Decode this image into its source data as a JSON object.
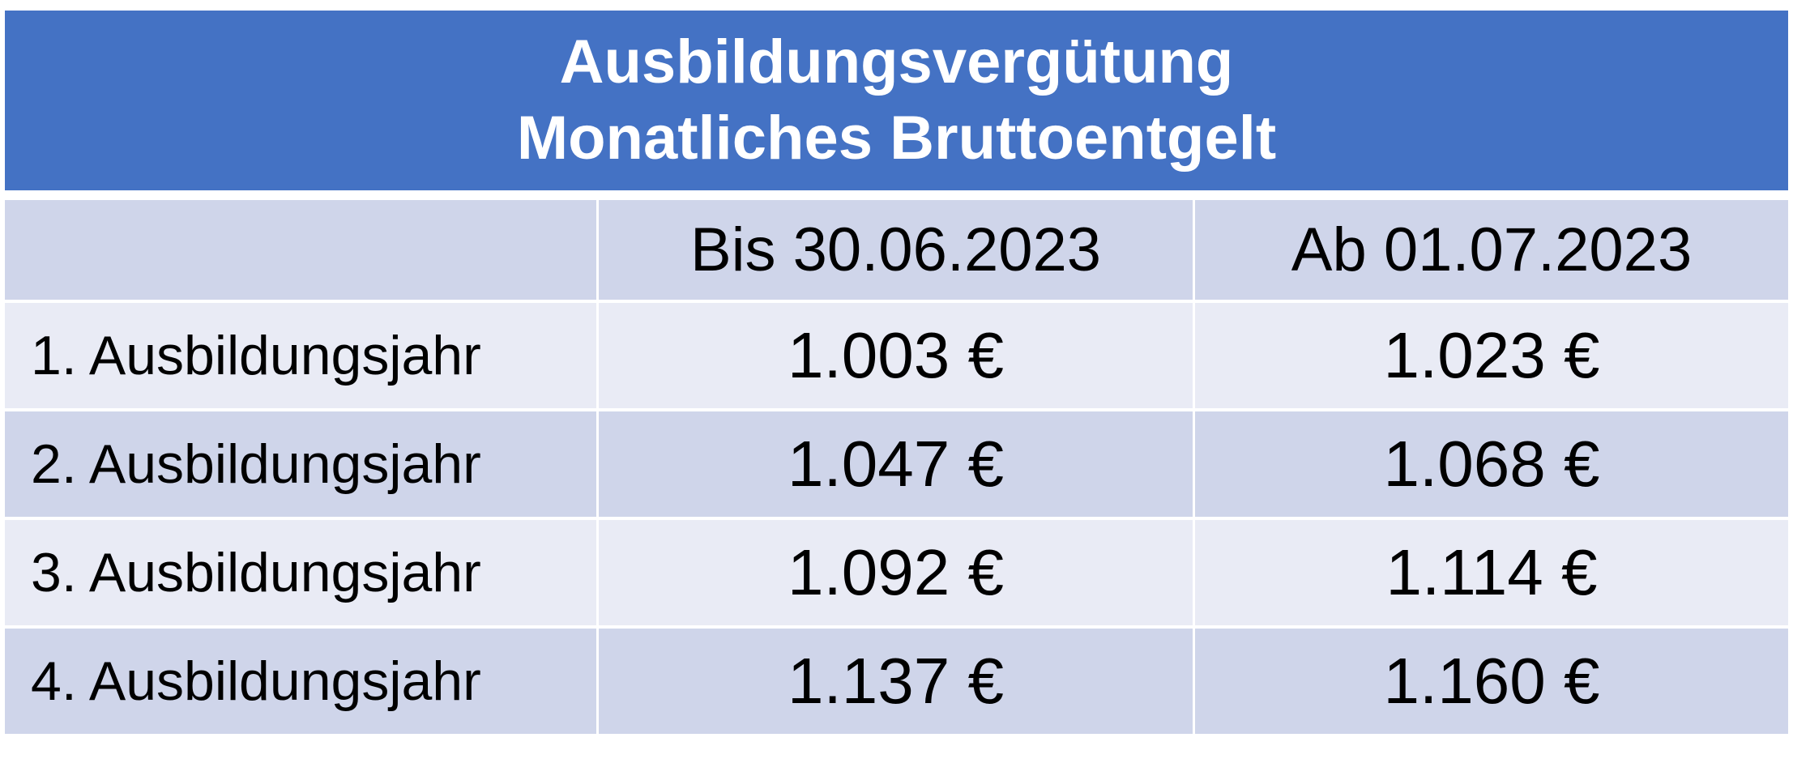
{
  "table": {
    "title_line1": "Ausbildungsvergütung",
    "title_line2": "Monatliches Bruttoentgelt",
    "columns": [
      "",
      "Bis 30.06.2023",
      "Ab 01.07.2023"
    ],
    "rows": [
      {
        "label": "1. Ausbildungsjahr",
        "before": "1.003 €",
        "after": "1.023 €"
      },
      {
        "label": "2. Ausbildungsjahr",
        "before": "1.047 €",
        "after": "1.068 €"
      },
      {
        "label": "3. Ausbildungsjahr",
        "before": "1.092 €",
        "after": "1.114 €"
      },
      {
        "label": "4. Ausbildungsjahr",
        "before": "1.137 €",
        "after": "1.160 €"
      }
    ]
  },
  "colors": {
    "header_band": "#4472C4",
    "band_dark": "#CFD5EA",
    "band_light": "#E9EBF5"
  }
}
